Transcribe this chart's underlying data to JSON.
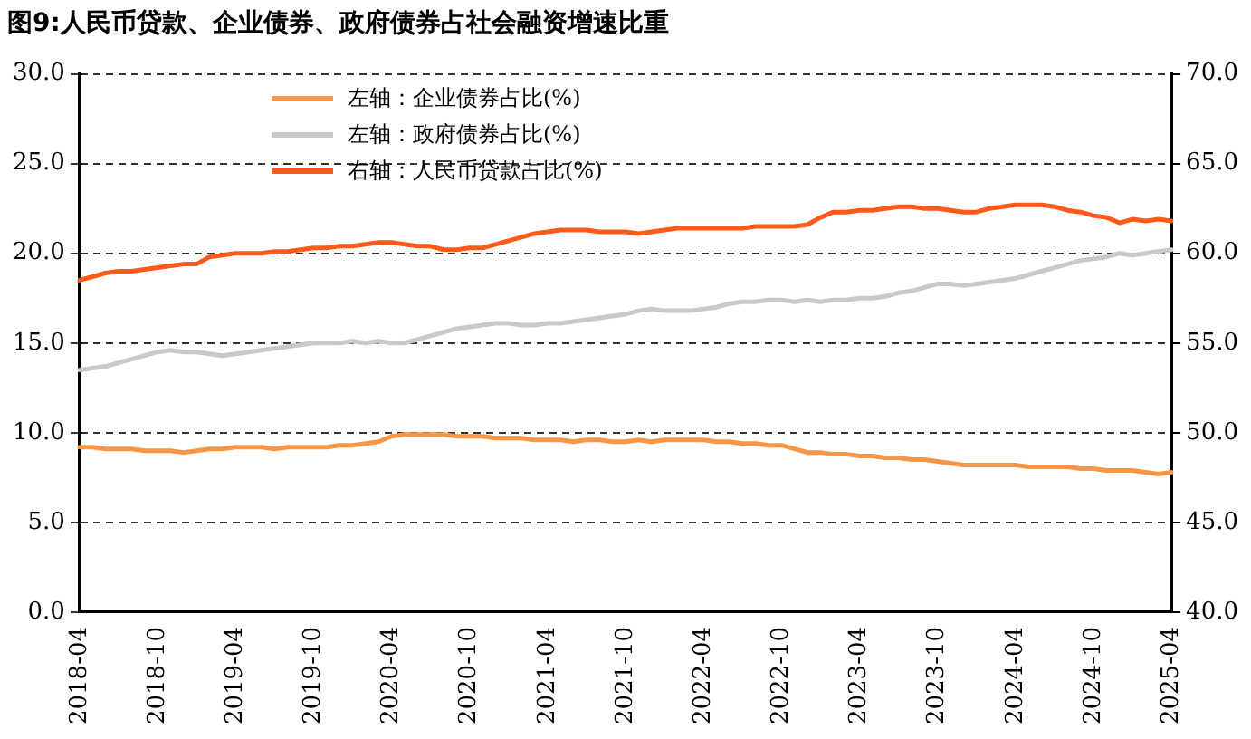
{
  "chart_data": {
    "type": "line",
    "title": "图9:人民币贷款、企业债券、政府债券占社会融资增速比重",
    "categories": [
      "2018-04",
      null,
      null,
      null,
      null,
      null,
      "2018-10",
      null,
      null,
      null,
      null,
      null,
      "2019-04",
      null,
      null,
      null,
      null,
      null,
      "2019-10",
      null,
      null,
      null,
      null,
      null,
      "2020-04",
      null,
      null,
      null,
      null,
      null,
      "2020-10",
      null,
      null,
      null,
      null,
      null,
      "2021-04",
      null,
      null,
      null,
      null,
      null,
      "2021-10",
      null,
      null,
      null,
      null,
      null,
      "2022-04",
      null,
      null,
      null,
      null,
      null,
      "2022-10",
      null,
      null,
      null,
      null,
      null,
      "2023-04",
      null,
      null,
      null,
      null,
      null,
      "2023-10",
      null,
      null,
      null,
      null,
      null,
      "2024-04",
      null,
      null,
      null,
      null,
      null,
      "2024-10",
      null,
      null,
      null,
      null,
      null,
      "2025-04"
    ],
    "series": [
      {
        "name": "左轴：企业债券占比(%)",
        "color": "#f79646",
        "axis": "y",
        "values": [
          9.2,
          9.2,
          9.1,
          9.1,
          9.1,
          9.0,
          9.0,
          9.0,
          8.9,
          9.0,
          9.1,
          9.1,
          9.2,
          9.2,
          9.2,
          9.1,
          9.2,
          9.2,
          9.2,
          9.2,
          9.3,
          9.3,
          9.4,
          9.5,
          9.8,
          9.9,
          9.9,
          9.9,
          9.9,
          9.8,
          9.8,
          9.8,
          9.7,
          9.7,
          9.7,
          9.6,
          9.6,
          9.6,
          9.5,
          9.6,
          9.6,
          9.5,
          9.5,
          9.6,
          9.5,
          9.6,
          9.6,
          9.6,
          9.6,
          9.5,
          9.5,
          9.4,
          9.4,
          9.3,
          9.3,
          9.1,
          8.9,
          8.9,
          8.8,
          8.8,
          8.7,
          8.7,
          8.6,
          8.6,
          8.5,
          8.5,
          8.4,
          8.3,
          8.2,
          8.2,
          8.2,
          8.2,
          8.2,
          8.1,
          8.1,
          8.1,
          8.1,
          8.0,
          8.0,
          7.9,
          7.9,
          7.9,
          7.8,
          7.7,
          7.8
        ]
      },
      {
        "name": "左轴：政府债券占比(%)",
        "color": "#c9c9c9",
        "axis": "y",
        "values": [
          13.5,
          13.6,
          13.7,
          13.9,
          14.1,
          14.3,
          14.5,
          14.6,
          14.5,
          14.5,
          14.4,
          14.3,
          14.4,
          14.5,
          14.6,
          14.7,
          14.8,
          14.9,
          15.0,
          15.0,
          15.0,
          15.1,
          15.0,
          15.1,
          15.0,
          15.0,
          15.2,
          15.4,
          15.6,
          15.8,
          15.9,
          16.0,
          16.1,
          16.1,
          16.0,
          16.0,
          16.1,
          16.1,
          16.2,
          16.3,
          16.4,
          16.5,
          16.6,
          16.8,
          16.9,
          16.8,
          16.8,
          16.8,
          16.9,
          17.0,
          17.2,
          17.3,
          17.3,
          17.4,
          17.4,
          17.3,
          17.4,
          17.3,
          17.4,
          17.4,
          17.5,
          17.5,
          17.6,
          17.8,
          17.9,
          18.1,
          18.3,
          18.3,
          18.2,
          18.3,
          18.4,
          18.5,
          18.6,
          18.8,
          19.0,
          19.2,
          19.4,
          19.6,
          19.7,
          19.8,
          20.0,
          19.9,
          20.0,
          20.1,
          20.2
        ]
      },
      {
        "name": "右轴：人民币贷款占比(%)",
        "color": "#ff5a1a",
        "axis": "y2",
        "values": [
          58.5,
          58.7,
          58.9,
          59.0,
          59.0,
          59.1,
          59.2,
          59.3,
          59.4,
          59.4,
          59.8,
          59.9,
          60.0,
          60.0,
          60.0,
          60.1,
          60.1,
          60.2,
          60.3,
          60.3,
          60.4,
          60.4,
          60.5,
          60.6,
          60.6,
          60.5,
          60.4,
          60.4,
          60.2,
          60.2,
          60.3,
          60.3,
          60.5,
          60.7,
          60.9,
          61.1,
          61.2,
          61.3,
          61.3,
          61.3,
          61.2,
          61.2,
          61.2,
          61.1,
          61.2,
          61.3,
          61.4,
          61.4,
          61.4,
          61.4,
          61.4,
          61.4,
          61.5,
          61.5,
          61.5,
          61.5,
          61.6,
          62.0,
          62.3,
          62.3,
          62.4,
          62.4,
          62.5,
          62.6,
          62.6,
          62.5,
          62.5,
          62.4,
          62.3,
          62.3,
          62.5,
          62.6,
          62.7,
          62.7,
          62.7,
          62.6,
          62.4,
          62.3,
          62.1,
          62.0,
          61.7,
          61.9,
          61.8,
          61.9,
          61.8
        ]
      }
    ],
    "ylim": [
      0,
      30
    ],
    "yticks": [
      {
        "value": 0,
        "label": "0.0"
      },
      {
        "value": 5,
        "label": "5.0"
      },
      {
        "value": 10,
        "label": "10.0"
      },
      {
        "value": 15,
        "label": "15.0"
      },
      {
        "value": 20,
        "label": "20.0"
      },
      {
        "value": 25,
        "label": "25.0"
      },
      {
        "value": 30,
        "label": "30.0"
      }
    ],
    "y2lim": [
      40,
      70
    ],
    "y2ticks": [
      {
        "value": 40,
        "label": "40.0"
      },
      {
        "value": 45,
        "label": "45.0"
      },
      {
        "value": 50,
        "label": "50.0"
      },
      {
        "value": 55,
        "label": "55.0"
      },
      {
        "value": 60,
        "label": "60.0"
      },
      {
        "value": 65,
        "label": "65.0"
      },
      {
        "value": 70,
        "label": "70.0"
      }
    ],
    "grid": "y",
    "legend": "top left",
    "line_style": "solid",
    "marker": "none"
  }
}
